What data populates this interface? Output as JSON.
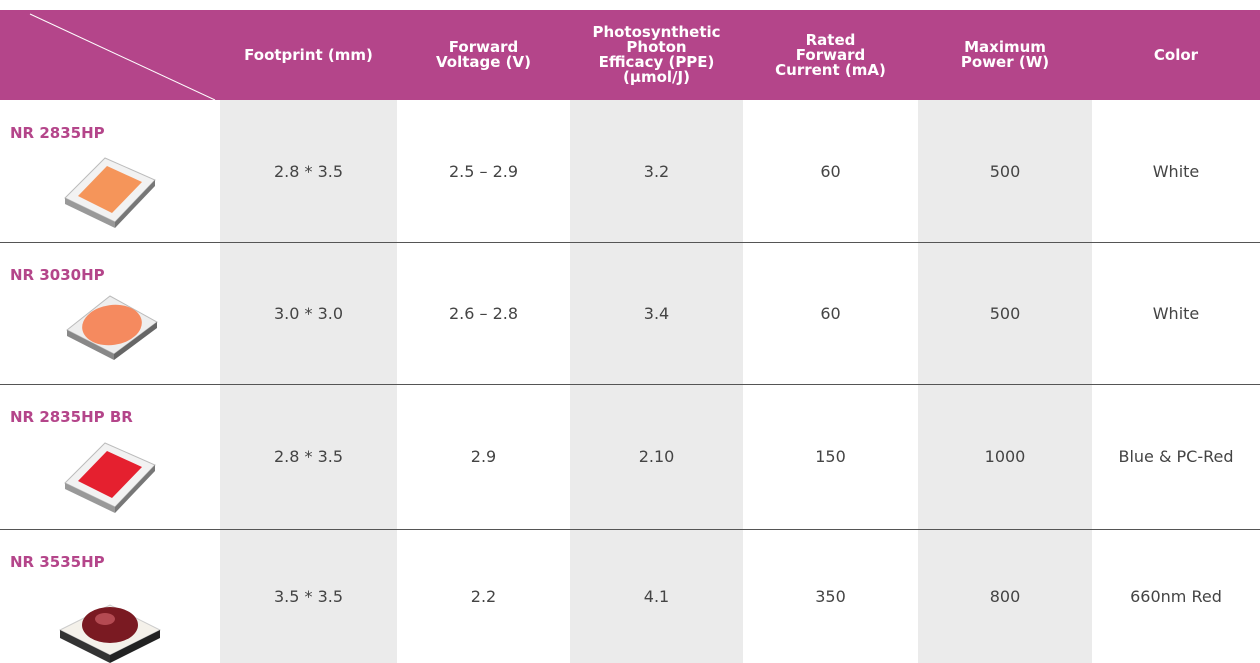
{
  "header": {
    "columns": [
      {
        "lines": [
          "Footprint (mm)"
        ]
      },
      {
        "lines": [
          "Forward",
          "Voltage (V)"
        ]
      },
      {
        "lines": [
          "Photosynthetic",
          "Photon",
          "Efficacy (PPE)",
          "(μmol/J)"
        ]
      },
      {
        "lines": [
          "Rated",
          "Forward",
          "Current (mA)"
        ]
      },
      {
        "lines": [
          "Maximum",
          "Power (W)"
        ]
      },
      {
        "lines": [
          "Color"
        ]
      }
    ]
  },
  "table": {
    "rows": [
      {
        "name": "NR 2835HP",
        "cells": [
          "2.8 * 3.5",
          "2.5 – 2.9",
          "3.2",
          "60",
          "500",
          "White"
        ]
      },
      {
        "name": "NR 3030HP",
        "cells": [
          "3.0 * 3.0",
          "2.6 – 2.8",
          "3.4",
          "60",
          "500",
          "White"
        ]
      },
      {
        "name": "NR 2835HP BR",
        "cells": [
          "2.8 * 3.5",
          "2.9",
          "2.10",
          "150",
          "1000",
          "Blue & PC-Red"
        ]
      },
      {
        "name": "NR 3535HP",
        "cells": [
          "3.5 * 3.5",
          "2.2",
          "4.1",
          "350",
          "800",
          "660nm Red"
        ]
      }
    ]
  }
}
